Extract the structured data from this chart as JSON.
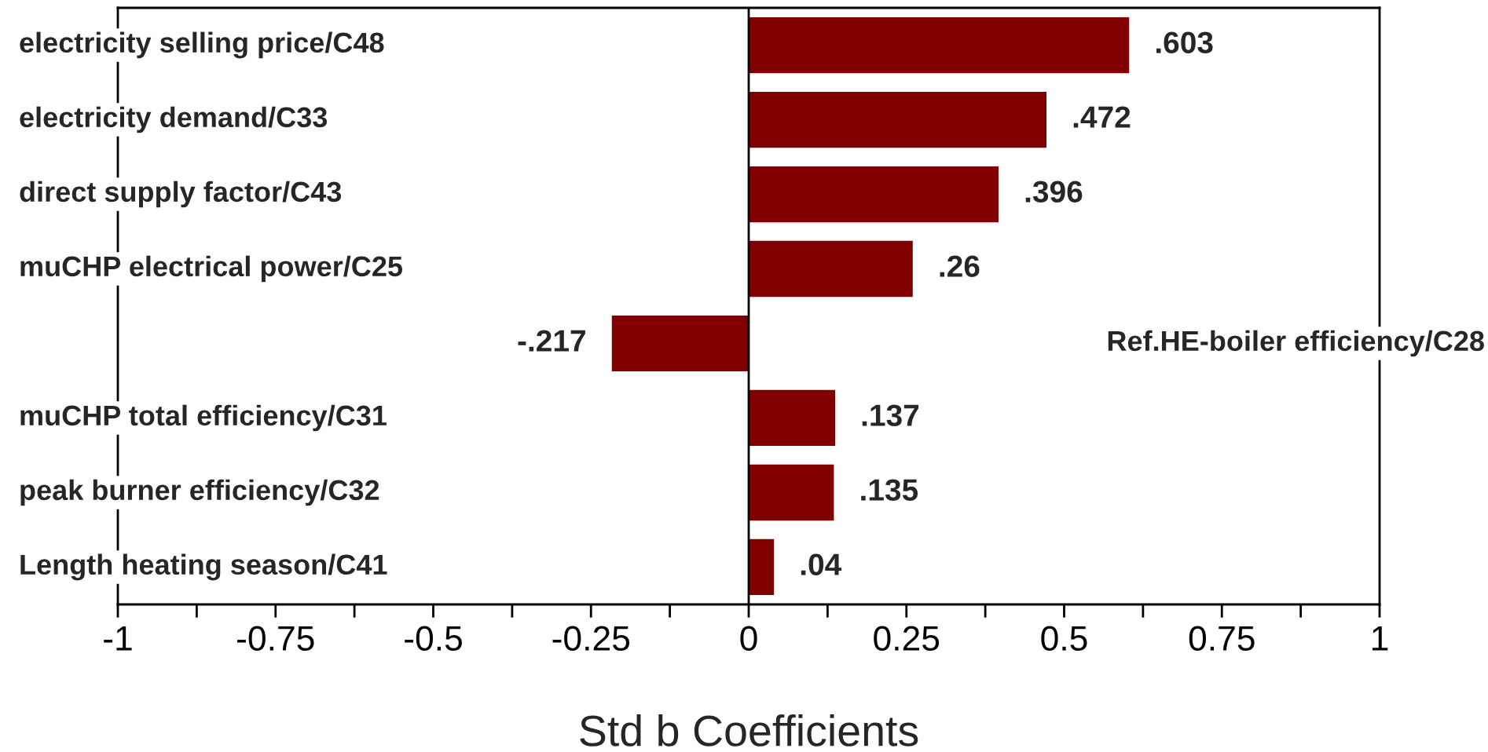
{
  "chart_data": {
    "type": "bar",
    "orientation": "horizontal",
    "xlabel": "Std b Coefficients",
    "categories": [
      "electricity selling price/C48",
      "electricity demand/C33",
      "direct supply factor/C43",
      "muCHP electrical power/C25",
      "Ref.HE-boiler efficiency/C28",
      "muCHP total efficiency/C31",
      "peak burner efficiency/C32",
      "Length heating season/C41"
    ],
    "values": [
      0.603,
      0.472,
      0.396,
      0.26,
      -0.217,
      0.137,
      0.135,
      0.04
    ],
    "value_labels": [
      ".603",
      ".472",
      ".396",
      ".26",
      "-.217",
      ".137",
      ".135",
      ".04"
    ],
    "color": "#800000",
    "xlim": [
      -1,
      1
    ],
    "xticks": [
      -1,
      {
        "value": -0.875,
        "label": null
      },
      -0.75,
      {
        "value": -0.625,
        "label": null
      },
      -0.5,
      {
        "value": -0.375,
        "label": null
      },
      -0.25,
      {
        "value": -0.125,
        "label": null
      },
      0,
      {
        "value": 0.125,
        "label": null
      },
      0.25,
      {
        "value": 0.375,
        "label": null
      },
      0.5,
      {
        "value": 0.625,
        "label": null
      },
      0.75,
      {
        "value": 0.875,
        "label": null
      },
      1
    ],
    "ref_lines": [
      {
        "axis": "x",
        "value": 0,
        "color": "#000000"
      }
    ],
    "grid": false,
    "legend": false
  }
}
